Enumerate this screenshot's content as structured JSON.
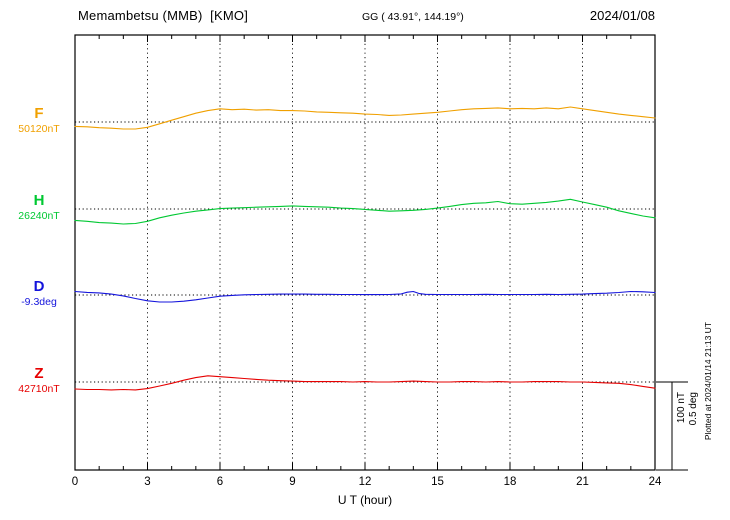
{
  "header": {
    "station": "Memambetsu (MMB)  [KMO]",
    "coordinates": "GG ( 43.91°, 144.19°)",
    "date": "2024/01/08"
  },
  "axis": {
    "xlabel": "U T (hour)"
  },
  "scale_bar": {
    "label_nt": "100 nT",
    "label_deg": "0.5 deg"
  },
  "footer_note": "Plotted at 2024/01/14 21:13 UT",
  "chart_data": {
    "type": "line",
    "title": "Memambetsu (MMB) [KMO] magnetogram 2024/01/08",
    "xlabel": "U T (hour)",
    "x_range": [
      0,
      24
    ],
    "x_ticks": [
      0,
      3,
      6,
      9,
      12,
      15,
      18,
      21,
      24
    ],
    "grid": "vertical dotted at 3-hour intervals, dotted baseline per trace",
    "scale": {
      "nT_per_div": 100,
      "deg_per_div": 0.5
    },
    "series": [
      {
        "name": "F",
        "unit": "nT",
        "baseline_value": "50120nT",
        "color": "#f0a000",
        "points": [
          [
            0,
            -5
          ],
          [
            0.5,
            -5.5
          ],
          [
            1,
            -6.5
          ],
          [
            1.5,
            -7
          ],
          [
            2,
            -8
          ],
          [
            2.5,
            -8
          ],
          [
            3,
            -6
          ],
          [
            3.5,
            -2
          ],
          [
            4,
            2
          ],
          [
            4.5,
            6
          ],
          [
            5,
            10
          ],
          [
            5.5,
            13
          ],
          [
            6,
            15
          ],
          [
            6.5,
            14
          ],
          [
            7,
            14.5
          ],
          [
            7.5,
            13.5
          ],
          [
            8,
            14
          ],
          [
            8.5,
            13
          ],
          [
            9,
            13
          ],
          [
            9.5,
            12.5
          ],
          [
            10,
            11.5
          ],
          [
            10.5,
            11
          ],
          [
            11,
            10.5
          ],
          [
            11.5,
            10
          ],
          [
            12,
            9
          ],
          [
            12.5,
            8.5
          ],
          [
            13,
            7.5
          ],
          [
            13.5,
            8
          ],
          [
            14,
            9
          ],
          [
            14.5,
            10
          ],
          [
            15,
            11
          ],
          [
            15.5,
            12.5
          ],
          [
            16,
            14
          ],
          [
            16.5,
            15
          ],
          [
            17,
            15.5
          ],
          [
            17.5,
            16
          ],
          [
            18,
            15
          ],
          [
            18.5,
            15.5
          ],
          [
            19,
            15
          ],
          [
            19.5,
            16
          ],
          [
            20,
            15
          ],
          [
            20.5,
            17
          ],
          [
            21,
            15
          ],
          [
            21.5,
            13
          ],
          [
            22,
            11
          ],
          [
            22.5,
            9
          ],
          [
            23,
            7.5
          ],
          [
            23.5,
            6
          ],
          [
            24,
            4.5
          ]
        ]
      },
      {
        "name": "H",
        "unit": "nT",
        "baseline_value": "26240nT",
        "color": "#00c832",
        "points": [
          [
            0,
            -13
          ],
          [
            0.5,
            -14
          ],
          [
            1,
            -15.5
          ],
          [
            1.5,
            -16
          ],
          [
            2,
            -17
          ],
          [
            2.5,
            -16.5
          ],
          [
            3,
            -14
          ],
          [
            3.5,
            -10
          ],
          [
            4,
            -7
          ],
          [
            4.5,
            -4.5
          ],
          [
            5,
            -2.5
          ],
          [
            5.5,
            -1
          ],
          [
            6,
            0.5
          ],
          [
            6.5,
            1
          ],
          [
            7,
            1.5
          ],
          [
            7.5,
            2
          ],
          [
            8,
            2.5
          ],
          [
            8.5,
            3
          ],
          [
            9,
            3.5
          ],
          [
            9.5,
            3
          ],
          [
            10,
            2.5
          ],
          [
            10.5,
            2
          ],
          [
            11,
            1
          ],
          [
            11.5,
            0.5
          ],
          [
            12,
            -0.5
          ],
          [
            12.5,
            -1.5
          ],
          [
            13,
            -2.5
          ],
          [
            13.5,
            -2
          ],
          [
            14,
            -1.5
          ],
          [
            14.5,
            -0.5
          ],
          [
            15,
            1
          ],
          [
            15.5,
            3
          ],
          [
            16,
            5
          ],
          [
            16.5,
            6.5
          ],
          [
            17,
            7
          ],
          [
            17.5,
            8.5
          ],
          [
            18,
            6
          ],
          [
            18.5,
            5.5
          ],
          [
            19,
            6.5
          ],
          [
            19.5,
            7.5
          ],
          [
            20,
            9
          ],
          [
            20.5,
            11
          ],
          [
            21,
            8
          ],
          [
            21.5,
            5
          ],
          [
            22,
            2
          ],
          [
            22.5,
            -2
          ],
          [
            23,
            -5
          ],
          [
            23.5,
            -8
          ],
          [
            24,
            -10
          ]
        ]
      },
      {
        "name": "D",
        "unit": "deg",
        "baseline_value": "-9.3deg",
        "color": "#1414dc",
        "points": [
          [
            0,
            0.02
          ],
          [
            0.5,
            0.015
          ],
          [
            1,
            0.012
          ],
          [
            1.5,
            0.005
          ],
          [
            2,
            -0.005
          ],
          [
            2.5,
            -0.02
          ],
          [
            3,
            -0.033
          ],
          [
            3.5,
            -0.04
          ],
          [
            4,
            -0.04
          ],
          [
            4.5,
            -0.035
          ],
          [
            5,
            -0.027
          ],
          [
            5.5,
            -0.017
          ],
          [
            6,
            -0.007
          ],
          [
            6.5,
            -0.002
          ],
          [
            7,
            0.001
          ],
          [
            7.5,
            0.003
          ],
          [
            8,
            0.004
          ],
          [
            8.5,
            0.005
          ],
          [
            9,
            0.005
          ],
          [
            9.5,
            0.005
          ],
          [
            10,
            0.004
          ],
          [
            10.5,
            0.004
          ],
          [
            11,
            0.003
          ],
          [
            11.5,
            0.003
          ],
          [
            12,
            0.002
          ],
          [
            12.5,
            0.002
          ],
          [
            13,
            0.003
          ],
          [
            13.5,
            0.006
          ],
          [
            13.75,
            0.016
          ],
          [
            14,
            0.02
          ],
          [
            14.25,
            0.008
          ],
          [
            14.5,
            0.004
          ],
          [
            15,
            0.003
          ],
          [
            15.5,
            0.003
          ],
          [
            16,
            0.003
          ],
          [
            16.5,
            0.003
          ],
          [
            17,
            0.004
          ],
          [
            17.5,
            0.003
          ],
          [
            18,
            0.003
          ],
          [
            18.5,
            0.003
          ],
          [
            19,
            0.003
          ],
          [
            19.5,
            0.004
          ],
          [
            20,
            0.003
          ],
          [
            20.5,
            0.004
          ],
          [
            21,
            0.005
          ],
          [
            21.5,
            0.008
          ],
          [
            22,
            0.01
          ],
          [
            22.5,
            0.014
          ],
          [
            23,
            0.02
          ],
          [
            23.5,
            0.018
          ],
          [
            24,
            0.014
          ]
        ]
      },
      {
        "name": "Z",
        "unit": "nT",
        "baseline_value": "42710nT",
        "color": "#e60000",
        "points": [
          [
            0,
            -8
          ],
          [
            0.5,
            -8.5
          ],
          [
            1,
            -8.5
          ],
          [
            1.5,
            -9
          ],
          [
            2,
            -8.5
          ],
          [
            2.5,
            -9
          ],
          [
            3,
            -7.5
          ],
          [
            3.5,
            -4.5
          ],
          [
            4,
            -1.5
          ],
          [
            4.5,
            2
          ],
          [
            5,
            5
          ],
          [
            5.5,
            7
          ],
          [
            6,
            6
          ],
          [
            6.5,
            5
          ],
          [
            7,
            4
          ],
          [
            7.5,
            3
          ],
          [
            8,
            2
          ],
          [
            8.5,
            1.5
          ],
          [
            9,
            1
          ],
          [
            9.5,
            0.5
          ],
          [
            10,
            0.5
          ],
          [
            10.5,
            0.5
          ],
          [
            11,
            0.5
          ],
          [
            11.5,
            0
          ],
          [
            12,
            0.5
          ],
          [
            12.5,
            0
          ],
          [
            13,
            0
          ],
          [
            13.5,
            0.5
          ],
          [
            14,
            1
          ],
          [
            14.5,
            0.5
          ],
          [
            15,
            0
          ],
          [
            15.5,
            0
          ],
          [
            16,
            0.5
          ],
          [
            16.5,
            0.5
          ],
          [
            17,
            0
          ],
          [
            17.5,
            0.5
          ],
          [
            18,
            0
          ],
          [
            18.5,
            0
          ],
          [
            19,
            0.5
          ],
          [
            19.5,
            0.5
          ],
          [
            20,
            0.5
          ],
          [
            20.5,
            0
          ],
          [
            21,
            0
          ],
          [
            21.5,
            -0.5
          ],
          [
            22,
            -1
          ],
          [
            22.5,
            -1.5
          ],
          [
            23,
            -3
          ],
          [
            23.5,
            -5
          ],
          [
            24,
            -7
          ]
        ]
      }
    ]
  }
}
